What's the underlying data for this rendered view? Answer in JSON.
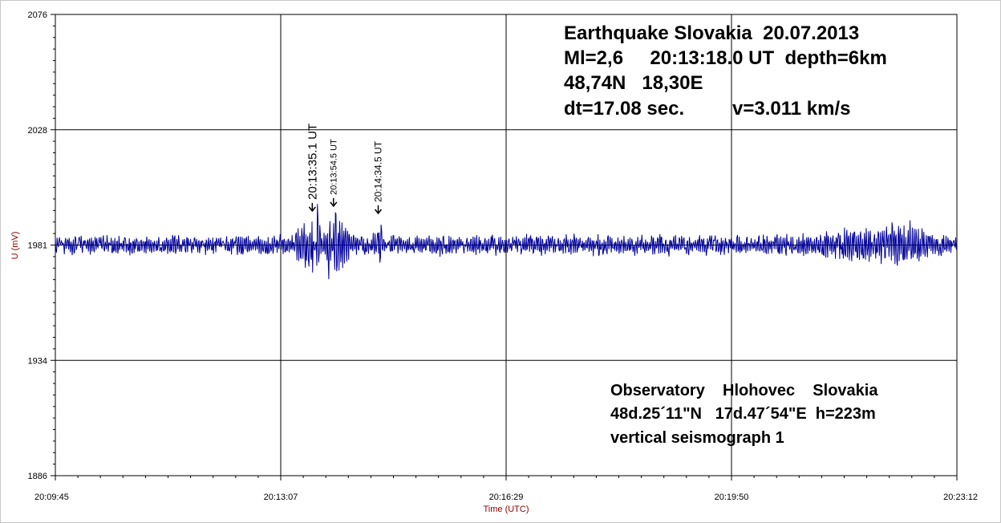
{
  "chart_data": {
    "type": "line",
    "title": "",
    "xlabel": "Time (UTC)",
    "ylabel": "U (mV)",
    "xlim": [
      "20:09:45",
      "20:23:12"
    ],
    "ylim": [
      1886,
      2076
    ],
    "x_tick_labels": [
      "20:09:45",
      "20:13:07",
      "20:16:29",
      "20:19:50",
      "20:23:12"
    ],
    "y_tick_labels": [
      "2076",
      "2028",
      "1981",
      "1934",
      "1886"
    ],
    "grid": true,
    "series": [
      {
        "color": "#000099",
        "baseline": 1981,
        "noise_amplitude": 4,
        "x": [
          "20:09:45",
          "20:13:07",
          "20:13:35",
          "20:13:40",
          "20:13:45",
          "20:13:50",
          "20:13:55",
          "20:14:05",
          "20:14:20",
          "20:14:35",
          "20:14:45",
          "20:15:00",
          "20:16:29",
          "20:19:50",
          "20:22:30",
          "20:23:12"
        ],
        "values": [
          1981,
          1982,
          1994,
          1958,
          1990,
          1963,
          1997,
          1990,
          1980,
          1992,
          1978,
          1982,
          1981,
          1983,
          1991,
          1979
        ]
      }
    ],
    "annotations": [
      {
        "label": "20:13:35.1 UT",
        "time": "20:13:35"
      },
      {
        "label": "20:13:54.5 UT",
        "time": "20:13:54"
      },
      {
        "label": "20:14:34.5 UT",
        "time": "20:14:34"
      }
    ]
  },
  "info_top": {
    "line1": "Earthquake Slovakia  20.07.2013",
    "line2": "Ml=2,6     20:13:18.0 UT  depth=6km",
    "line3": "48,74N   18,30E",
    "line4_a": "dt=17.08 sec.",
    "line4_b": "v=3.011 km/s"
  },
  "info_bottom": {
    "line1": "Observatory    Hlohovec    Slovakia",
    "line2": "48d.25´11\"N   17d.47´54\"E  h=223m",
    "line3": "vertical seismograph 1"
  }
}
